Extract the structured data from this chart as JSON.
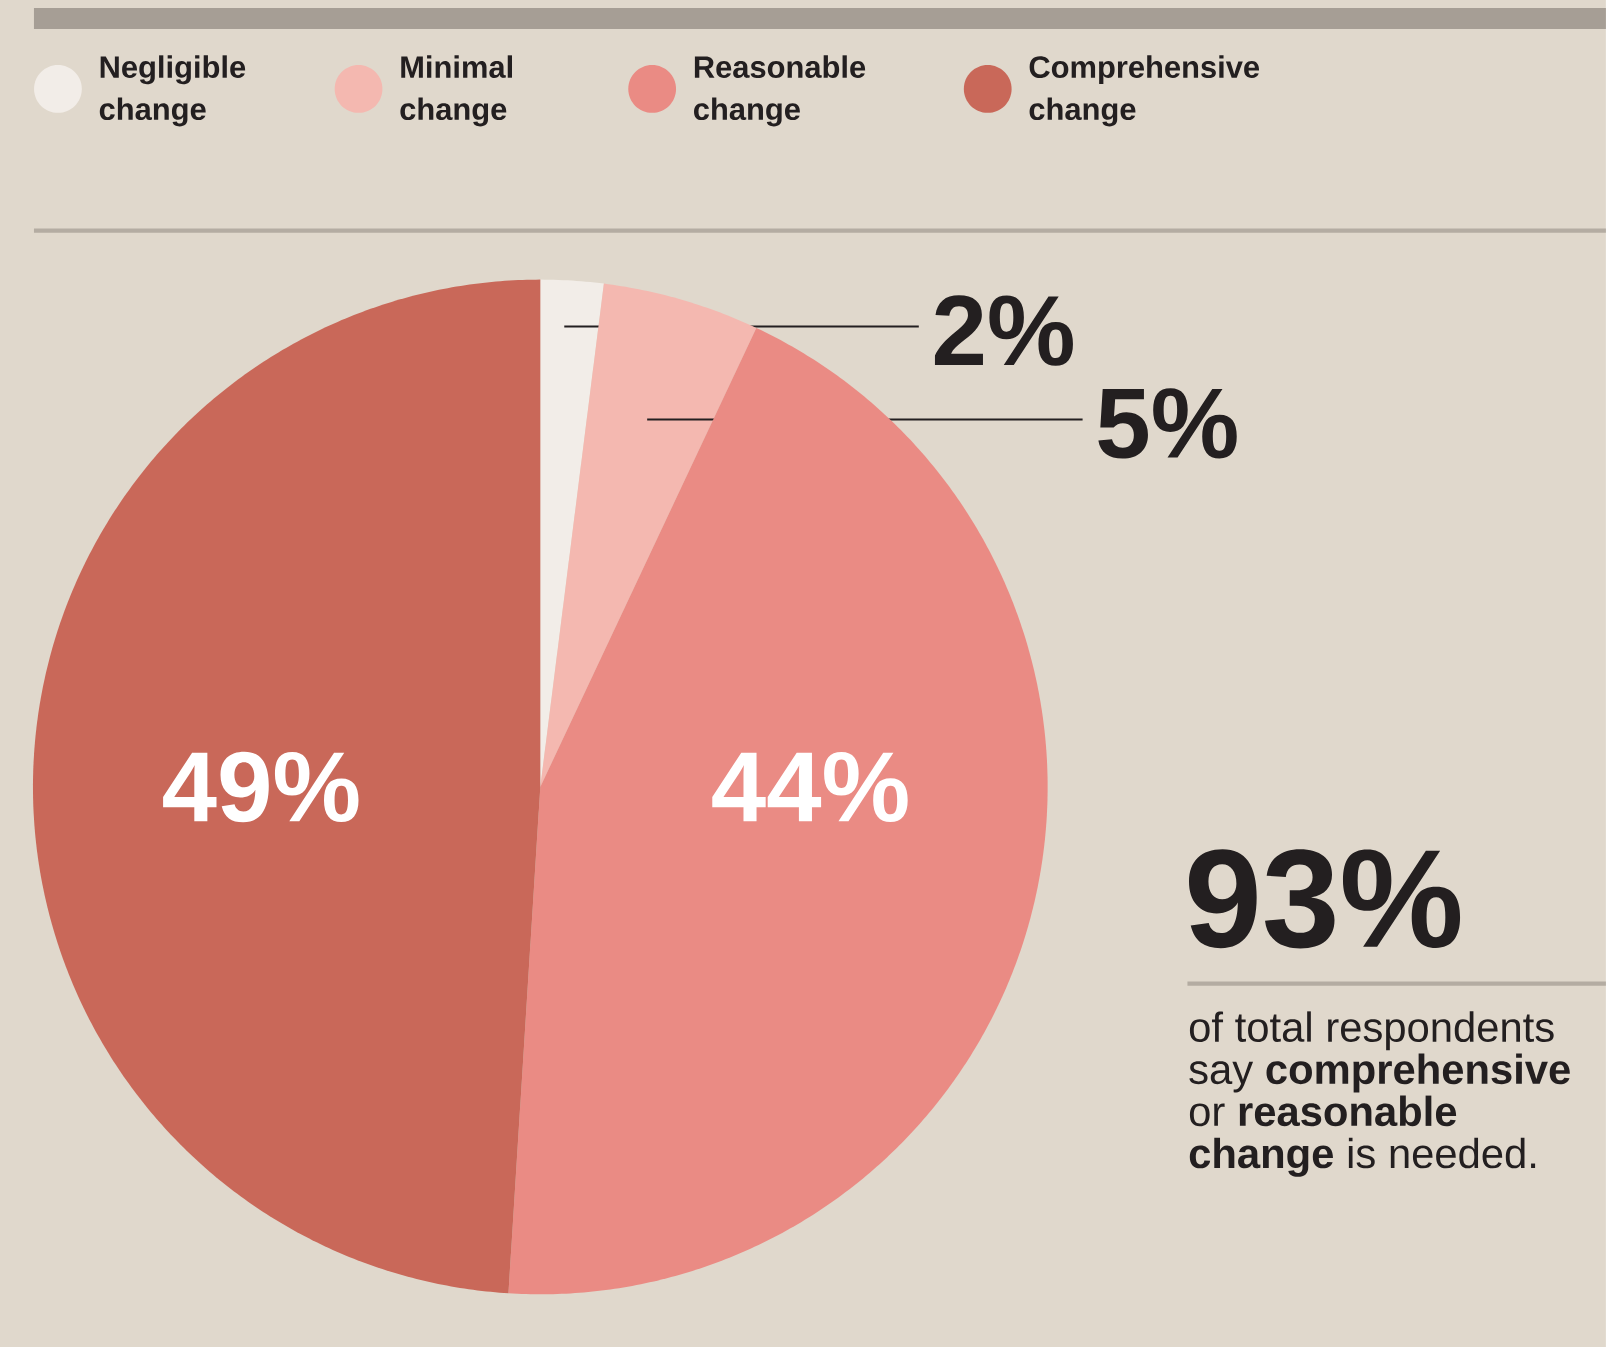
{
  "chart_data": {
    "type": "pie",
    "categories": [
      "Negligible change",
      "Minimal change",
      "Reasonable change",
      "Comprehensive change"
    ],
    "values": [
      2,
      5,
      44,
      49
    ],
    "colors": [
      "#f2ede8",
      "#f4b8b0",
      "#ea8b84",
      "#c96859"
    ],
    "value_labels": [
      "2%",
      "5%",
      "44%",
      "49%"
    ],
    "legend": "top",
    "annotations": [
      "93%",
      "of total respondents say **comprehensive** or **reasonable change** is needed."
    ]
  }
}
